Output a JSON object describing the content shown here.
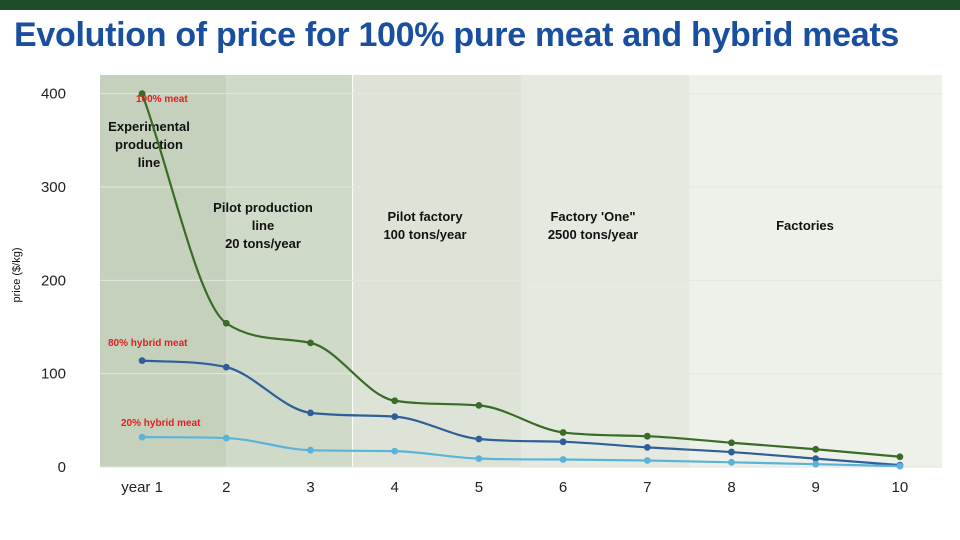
{
  "header": {
    "title": "Evolution of price for 100% pure meat and hybrid meats",
    "bar_color": "#1f4d2c",
    "title_color": "#1a4fa0"
  },
  "chart_data": {
    "type": "line",
    "title": "Evolution of price for 100% pure meat and hybrid meats",
    "xlabel": "",
    "ylabel": "price ($/kg)",
    "categories": [
      "year 1",
      "2",
      "3",
      "4",
      "5",
      "6",
      "7",
      "8",
      "9",
      "10"
    ],
    "ylim": [
      0,
      420
    ],
    "yticks": [
      0,
      100,
      200,
      300,
      400
    ],
    "grid": true,
    "series": [
      {
        "name": "100% meat",
        "color": "#3a6b27",
        "values": [
          400,
          154,
          133,
          71,
          66,
          37,
          33,
          26,
          19,
          11
        ]
      },
      {
        "name": "80% hybrid meat",
        "color": "#2e5f99",
        "values": [
          114,
          107,
          58,
          54,
          30,
          27,
          21,
          16,
          9,
          2
        ]
      },
      {
        "name": "20% hybrid meat",
        "color": "#5ab4d9",
        "values": [
          32,
          31,
          18,
          17,
          9,
          8,
          7,
          5,
          3,
          1
        ]
      }
    ],
    "phases": [
      {
        "lines": [
          "Experimental",
          "production",
          "line"
        ],
        "from": 1,
        "to": 2,
        "color": "#c5d1bd"
      },
      {
        "lines": [
          "Pilot production",
          "line",
          "20 tons/year"
        ],
        "from": 2,
        "to": 3.5,
        "color": "#d0dac8"
      },
      {
        "lines": [
          "Pilot factory",
          "100 tons/year"
        ],
        "from": 3.5,
        "to": 5.5,
        "color": "#dde4d7"
      },
      {
        "lines": [
          "Factory 'One\"",
          "2500 tons/year"
        ],
        "from": 5.5,
        "to": 7.5,
        "color": "#e4eadf"
      },
      {
        "lines": [
          "Factories"
        ],
        "from": 7.5,
        "to": 10.5,
        "color": "#eef1ea"
      }
    ]
  }
}
